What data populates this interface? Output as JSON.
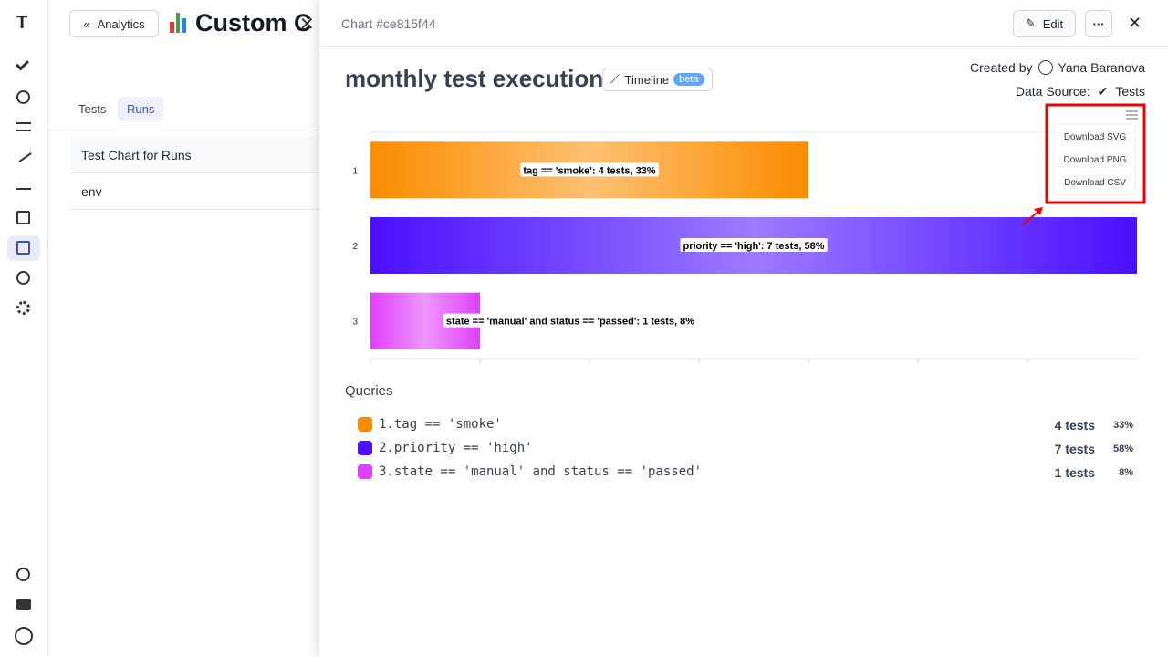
{
  "background": {
    "back_button": "Analytics",
    "title": "Custom C",
    "tabs": [
      "Tests",
      "Runs"
    ],
    "list": [
      "Test Chart for Runs",
      "env"
    ]
  },
  "panel": {
    "chart_id": "Chart #ce815f44",
    "edit": "Edit",
    "title": "monthly test execution",
    "badge": "Timeline",
    "beta": "beta",
    "created_by_label": "Created by",
    "author": "Yana Baranova",
    "data_source_label": "Data Source:",
    "data_source": "Tests"
  },
  "chart_data": {
    "type": "bar",
    "orientation": "horizontal",
    "categories": [
      "1",
      "2",
      "3"
    ],
    "values": [
      4,
      7,
      1
    ],
    "value_labels": [
      "tag == 'smoke': 4 tests, 33%",
      "priority == 'high': 7 tests, 58%",
      "state == 'manual' and status == 'passed': 1 tests, 8%"
    ],
    "colors": [
      "#fb8c00",
      "#4a0fff",
      "#e040fb"
    ],
    "xlim": [
      0,
      7
    ],
    "menu": [
      "Download SVG",
      "Download PNG",
      "Download CSV"
    ]
  },
  "queries": {
    "title": "Queries",
    "items": [
      {
        "label": "1.tag == 'smoke'",
        "count": "4 tests",
        "percent": "33%"
      },
      {
        "label": "2.priority == 'high'",
        "count": "7 tests",
        "percent": "58%"
      },
      {
        "label": "3.state == 'manual' and status == 'passed'",
        "count": "1 tests",
        "percent": "8%"
      }
    ]
  }
}
